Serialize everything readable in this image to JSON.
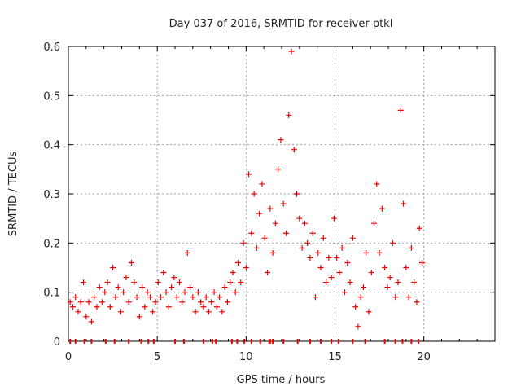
{
  "chart_data": {
    "type": "scatter",
    "title": "Day 037 of 2016, SRMTID for receiver ptkl",
    "xlabel": "GPS time / hours",
    "ylabel": "SRMTID / TECUs",
    "xlim": [
      0,
      24
    ],
    "ylim": [
      0,
      0.6
    ],
    "xticks": [
      0,
      5,
      10,
      15,
      20
    ],
    "yticks": [
      0,
      0.1,
      0.2,
      0.3,
      0.4,
      0.5,
      0.6
    ],
    "grid": true,
    "marker": "+",
    "color": "#ee0000",
    "series": [
      {
        "name": "SRMTID",
        "x": [
          0.1,
          0.25,
          0.4,
          0.55,
          0.7,
          0.85,
          1.0,
          1.15,
          1.3,
          1.45,
          1.6,
          1.75,
          1.9,
          2.05,
          2.2,
          2.35,
          2.5,
          2.65,
          2.8,
          2.95,
          3.1,
          3.25,
          3.4,
          3.55,
          3.7,
          3.85,
          4.0,
          4.15,
          4.3,
          4.45,
          4.6,
          4.75,
          4.9,
          5.05,
          5.2,
          5.35,
          5.5,
          5.65,
          5.8,
          5.95,
          6.1,
          6.25,
          6.4,
          6.55,
          6.7,
          6.85,
          7.0,
          7.15,
          7.3,
          7.45,
          7.6,
          7.75,
          7.9,
          8.05,
          8.2,
          8.35,
          8.5,
          8.65,
          8.8,
          8.95,
          9.1,
          9.25,
          9.4,
          9.55,
          9.7,
          9.85,
          10.0,
          10.15,
          10.3,
          10.45,
          10.6,
          10.75,
          10.9,
          11.05,
          11.2,
          11.35,
          11.5,
          11.65,
          11.8,
          11.95,
          12.1,
          12.25,
          12.4,
          12.55,
          12.7,
          12.85,
          13.0,
          13.15,
          13.3,
          13.45,
          13.6,
          13.75,
          13.9,
          14.05,
          14.2,
          14.35,
          14.5,
          14.65,
          14.8,
          14.95,
          15.1,
          15.25,
          15.4,
          15.55,
          15.7,
          15.85,
          16.0,
          16.15,
          16.3,
          16.45,
          16.6,
          16.75,
          16.9,
          17.05,
          17.2,
          17.35,
          17.5,
          17.65,
          17.8,
          17.95,
          18.1,
          18.25,
          18.4,
          18.55,
          18.7,
          18.85,
          19.0,
          19.15,
          19.3,
          19.45,
          19.6,
          19.75,
          19.9
        ],
        "y": [
          0.08,
          0.07,
          0.09,
          0.06,
          0.08,
          0.12,
          0.05,
          0.08,
          0.04,
          0.09,
          0.07,
          0.11,
          0.08,
          0.1,
          0.12,
          0.07,
          0.15,
          0.09,
          0.11,
          0.06,
          0.1,
          0.13,
          0.08,
          0.16,
          0.12,
          0.09,
          0.05,
          0.11,
          0.07,
          0.1,
          0.09,
          0.06,
          0.08,
          0.12,
          0.09,
          0.14,
          0.1,
          0.07,
          0.11,
          0.13,
          0.09,
          0.12,
          0.08,
          0.1,
          0.18,
          0.11,
          0.09,
          0.06,
          0.1,
          0.08,
          0.07,
          0.09,
          0.06,
          0.08,
          0.1,
          0.07,
          0.09,
          0.06,
          0.11,
          0.08,
          0.12,
          0.14,
          0.1,
          0.16,
          0.12,
          0.2,
          0.15,
          0.34,
          0.22,
          0.3,
          0.19,
          0.26,
          0.32,
          0.21,
          0.14,
          0.27,
          0.18,
          0.24,
          0.35,
          0.41,
          0.28,
          0.22,
          0.46,
          0.59,
          0.39,
          0.3,
          0.25,
          0.19,
          0.24,
          0.2,
          0.17,
          0.22,
          0.09,
          0.18,
          0.15,
          0.21,
          0.12,
          0.17,
          0.13,
          0.25,
          0.17,
          0.14,
          0.19,
          0.1,
          0.16,
          0.12,
          0.21,
          0.07,
          0.03,
          0.09,
          0.11,
          0.18,
          0.06,
          0.14,
          0.24,
          0.32,
          0.18,
          0.27,
          0.15,
          0.11,
          0.13,
          0.2,
          0.09,
          0.12,
          0.47,
          0.28,
          0.15,
          0.09,
          0.19,
          0.12,
          0.08,
          0.23,
          0.16
        ],
        "ticks_at_zero": [
          0.1,
          0.4,
          0.9,
          1.3,
          2.1,
          2.6,
          3.4,
          4.1,
          4.5,
          4.8,
          6.0,
          6.5,
          7.6,
          8.1,
          8.3,
          9.2,
          9.5,
          9.9,
          10.3,
          10.8,
          11.3,
          11.35,
          11.5,
          12.1,
          12.9,
          13.6,
          14.2,
          14.8,
          15.2,
          16.0,
          16.7,
          17.8,
          18.4,
          18.8,
          19.3,
          19.7
        ]
      }
    ]
  }
}
